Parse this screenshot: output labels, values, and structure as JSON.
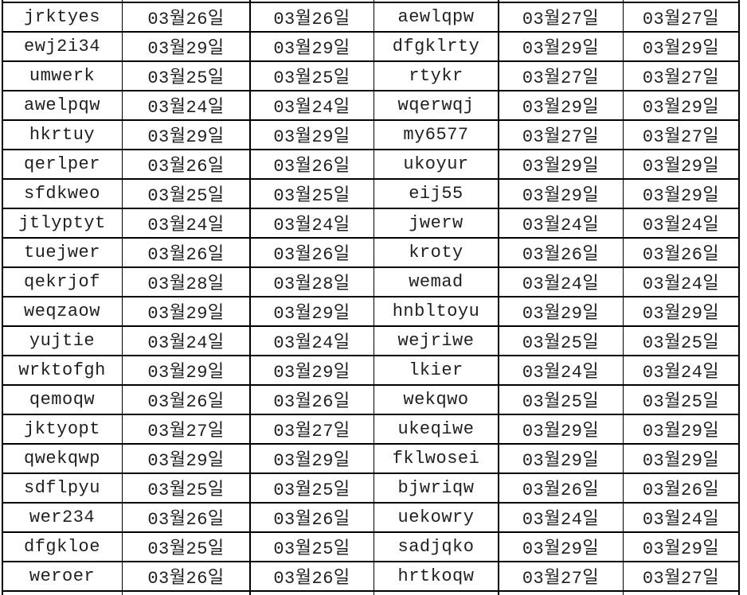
{
  "colors": {
    "background": "#ffffff",
    "gridline": "#000000",
    "text": "#1f1f1f"
  },
  "table": {
    "rows": [
      [
        "jrktyes",
        "03월26일",
        "03월26일",
        "aewlqpw",
        "03월27일",
        "03월27일"
      ],
      [
        "ewj2i34",
        "03월29일",
        "03월29일",
        "dfgklrty",
        "03월29일",
        "03월29일"
      ],
      [
        "umwerk",
        "03월25일",
        "03월25일",
        "rtykr",
        "03월27일",
        "03월27일"
      ],
      [
        "awelpqw",
        "03월24일",
        "03월24일",
        "wqerwqj",
        "03월29일",
        "03월29일"
      ],
      [
        "hkrtuy",
        "03월29일",
        "03월29일",
        "my6577",
        "03월27일",
        "03월27일"
      ],
      [
        "qerlper",
        "03월26일",
        "03월26일",
        "ukoyur",
        "03월29일",
        "03월29일"
      ],
      [
        "sfdkweo",
        "03월25일",
        "03월25일",
        "eij55",
        "03월29일",
        "03월29일"
      ],
      [
        "jtlyptyt",
        "03월24일",
        "03월24일",
        "jwerw",
        "03월24일",
        "03월24일"
      ],
      [
        "tuejwer",
        "03월26일",
        "03월26일",
        "kroty",
        "03월26일",
        "03월26일"
      ],
      [
        "qekrjof",
        "03월28일",
        "03월28일",
        "wemad",
        "03월24일",
        "03월24일"
      ],
      [
        "weqzaow",
        "03월29일",
        "03월29일",
        "hnbltoyu",
        "03월29일",
        "03월29일"
      ],
      [
        "yujtie",
        "03월24일",
        "03월24일",
        "wejriwe",
        "03월25일",
        "03월25일"
      ],
      [
        "wrktofgh",
        "03월29일",
        "03월29일",
        "lkier",
        "03월24일",
        "03월24일"
      ],
      [
        "qemoqw",
        "03월26일",
        "03월26일",
        "wekqwo",
        "03월25일",
        "03월25일"
      ],
      [
        "jktyopt",
        "03월27일",
        "03월27일",
        "ukeqiwe",
        "03월29일",
        "03월29일"
      ],
      [
        "qwekqwp",
        "03월29일",
        "03월29일",
        "fklwosei",
        "03월29일",
        "03월29일"
      ],
      [
        "sdflpyu",
        "03월25일",
        "03월25일",
        "bjwriqw",
        "03월26일",
        "03월26일"
      ],
      [
        "wer234",
        "03월26일",
        "03월26일",
        "uekowry",
        "03월24일",
        "03월24일"
      ],
      [
        "dfgkloe",
        "03월25일",
        "03월25일",
        "sadjqko",
        "03월29일",
        "03월29일"
      ],
      [
        "weroer",
        "03월26일",
        "03월26일",
        "hrtkoqw",
        "03월27일",
        "03월27일"
      ]
    ]
  }
}
